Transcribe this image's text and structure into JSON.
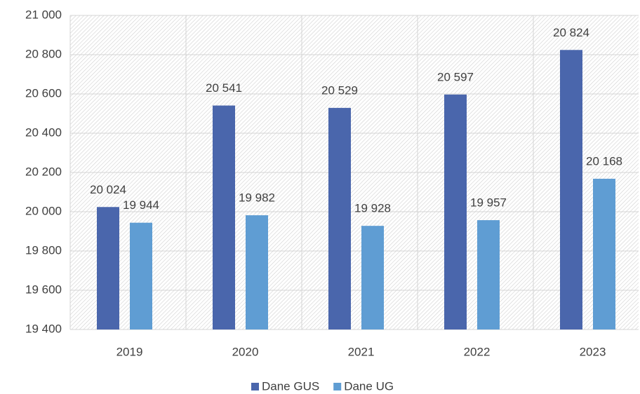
{
  "chart_data": {
    "type": "bar",
    "categories": [
      "2019",
      "2020",
      "2021",
      "2022",
      "2023"
    ],
    "series": [
      {
        "name": "Dane GUS",
        "color": "#4a66ac",
        "values": [
          20024,
          20541,
          20529,
          20597,
          20824
        ],
        "value_labels": [
          "20 024",
          "20 541",
          "20 529",
          "20 597",
          "20 824"
        ]
      },
      {
        "name": "Dane UG",
        "color": "#5f9dd3",
        "values": [
          19944,
          19982,
          19928,
          19957,
          20168
        ],
        "value_labels": [
          "19 944",
          "19 982",
          "19 928",
          "19 957",
          "20 168"
        ]
      }
    ],
    "ylim": [
      19400,
      21000
    ],
    "yticks": [
      {
        "value": 19400,
        "label": "19 400"
      },
      {
        "value": 19600,
        "label": "19 600"
      },
      {
        "value": 19800,
        "label": "19 800"
      },
      {
        "value": 20000,
        "label": "20 000"
      },
      {
        "value": 20200,
        "label": "20 200"
      },
      {
        "value": 20400,
        "label": "20 400"
      },
      {
        "value": 20600,
        "label": "20 600"
      },
      {
        "value": 20800,
        "label": "20 800"
      },
      {
        "value": 21000,
        "label": "21 000"
      }
    ],
    "grid": true,
    "legend": "bottom"
  }
}
